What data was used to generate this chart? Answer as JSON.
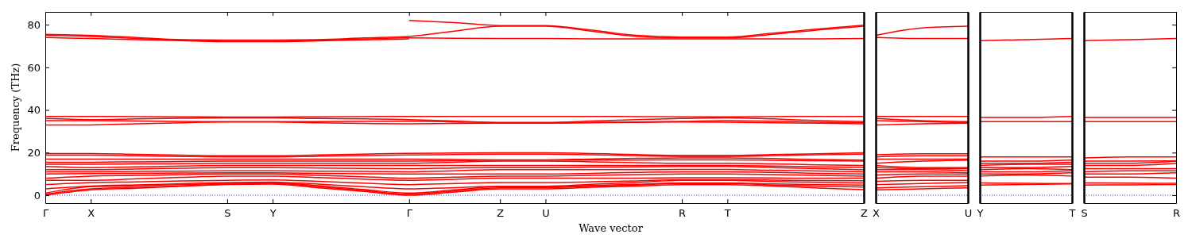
{
  "chart_data": [
    {
      "type": "line",
      "ylabel": "Frequency (THz)",
      "xlabel": "Wave vector",
      "categories": [
        "Γ",
        "X",
        null,
        null,
        "S",
        "Y",
        null,
        null,
        "Γ",
        null,
        "Z",
        "U",
        null,
        null,
        "R",
        "T",
        null,
        null,
        "Z"
      ],
      "ylim": [
        -3.7,
        86
      ],
      "yticks": [
        0,
        20,
        40,
        60,
        80
      ],
      "ref_lines": [
        {
          "axis": "y",
          "value": 0,
          "color": "#0000ff",
          "line_style": "dotted"
        }
      ],
      "series": [
        {
          "color": "#ff0000",
          "values": [
            75.5,
            75,
            74,
            73,
            72.8,
            72.8,
            73,
            73.8,
            74.5,
            77,
            79.3,
            79.3,
            77,
            74.5,
            73.8,
            73.8,
            75.5,
            77.5,
            79.3
          ]
        },
        {
          "color": "#ff0000",
          "values": [
            75,
            74.5,
            73.5,
            72.8,
            72.2,
            72.2,
            72.8,
            73.3,
            73.8,
            73.6,
            73.5,
            73.5,
            73.3,
            73.3,
            73.3,
            73.3,
            73.3,
            73.3,
            73.5
          ]
        },
        {
          "color": "#ff0000",
          "values": [
            74,
            73.5,
            73,
            72.5,
            72,
            72,
            72.4,
            72.9,
            73.3,
            null,
            null,
            null,
            null,
            null,
            null,
            null,
            null,
            null,
            null
          ]
        },
        {
          "color": "#ff0000",
          "values": [
            null,
            null,
            null,
            null,
            null,
            null,
            null,
            null,
            82,
            81,
            79.6,
            79.6,
            77.5,
            75,
            74.2,
            74.2,
            76,
            78,
            79.8
          ]
        },
        {
          "color": "#ff0000",
          "values": [
            37,
            37,
            36.9,
            36.8,
            36.7,
            36.7,
            36.8,
            36.9,
            37,
            37,
            37,
            37,
            37,
            36.9,
            36.8,
            36.8,
            36.9,
            37,
            37
          ]
        },
        {
          "color": "#ff0000",
          "values": [
            36,
            35.5,
            35.8,
            36.1,
            36.3,
            36.3,
            36,
            35.8,
            35.5,
            34.8,
            34.2,
            34.2,
            34.8,
            35.5,
            36,
            36.3,
            35.8,
            35,
            34.5
          ]
        },
        {
          "color": "#ff0000",
          "values": [
            35,
            35,
            34.8,
            34.6,
            34.5,
            34.5,
            34.5,
            34.6,
            34.7,
            34.4,
            34,
            34,
            34.2,
            34.4,
            34.6,
            35,
            34.7,
            34.3,
            34
          ]
        },
        {
          "color": "#ff0000",
          "values": [
            33,
            33,
            33.5,
            34,
            34.4,
            34.4,
            34,
            33.7,
            33.5,
            33.7,
            33.8,
            33.8,
            34,
            34.2,
            34.4,
            34.3,
            34,
            33.8,
            33.5
          ]
        },
        {
          "color": "#ff0000",
          "values": [
            0,
            2.5,
            3.3,
            4.2,
            5,
            5.2,
            3.5,
            1.8,
            0,
            1.5,
            3,
            3,
            3.7,
            4.3,
            5,
            5,
            4.3,
            3.4,
            2.6
          ]
        },
        {
          "color": "#ff0000",
          "values": [
            0.5,
            3,
            3.7,
            4.4,
            5.2,
            5.6,
            4,
            2.3,
            0.5,
            2,
            3.5,
            3.5,
            4.2,
            4.8,
            5.5,
            5.5,
            4.8,
            4.3,
            3.8
          ]
        },
        {
          "color": "#ff0000",
          "values": [
            1,
            4,
            4.5,
            5,
            5.5,
            5.8,
            4.5,
            2.7,
            1,
            2.5,
            4,
            4,
            4.6,
            5.1,
            5.8,
            5.8,
            5.3,
            5,
            4.8
          ]
        },
        {
          "color": "#ff0000",
          "values": [
            3,
            4.3,
            4.9,
            5.4,
            6,
            6.2,
            5.2,
            4,
            3,
            3.6,
            4.2,
            4.2,
            5.1,
            6,
            7,
            7,
            6.4,
            6.1,
            5.8
          ]
        },
        {
          "color": "#ff0000",
          "values": [
            5,
            6,
            6.3,
            6.7,
            7,
            7.2,
            6.5,
            5.7,
            5,
            5.5,
            6,
            6,
            6.3,
            6.7,
            7.3,
            7.3,
            7.1,
            6.9,
            6.8
          ]
        },
        {
          "color": "#ff0000",
          "values": [
            7,
            7,
            7.7,
            8.4,
            9,
            9,
            8.3,
            7.6,
            7,
            7.5,
            8,
            8,
            8,
            8,
            8.2,
            8.2,
            8.1,
            8,
            8
          ]
        },
        {
          "color": "#ff0000",
          "values": [
            8,
            9,
            9.3,
            9.7,
            10,
            10,
            9.3,
            8.7,
            8,
            8.5,
            9,
            9,
            9.3,
            9.7,
            10,
            10,
            9.7,
            9.3,
            9
          ]
        },
        {
          "color": "#ff0000",
          "values": [
            10,
            10.2,
            10.3,
            10.4,
            10.5,
            10.5,
            10.3,
            10.1,
            10,
            10,
            10,
            10,
            10.3,
            10.7,
            11,
            11,
            10.7,
            10.3,
            10
          ]
        },
        {
          "color": "#ff0000",
          "values": [
            11,
            11,
            11.2,
            11.3,
            11.5,
            11.5,
            11.3,
            11.2,
            11,
            11.5,
            12,
            12,
            12,
            12,
            12.1,
            12.1,
            11.7,
            11.4,
            11
          ]
        },
        {
          "color": "#ff0000",
          "values": [
            12,
            12,
            12.3,
            12.7,
            13,
            13,
            12.8,
            12.6,
            12.5,
            12.8,
            13,
            13,
            13.2,
            13.3,
            13.5,
            13.5,
            13,
            12.5,
            12
          ]
        },
        {
          "color": "#ff0000",
          "values": [
            13.5,
            13,
            13.3,
            13.7,
            14,
            14,
            14,
            14,
            14,
            14,
            14,
            14,
            14,
            14,
            14,
            14,
            13.7,
            13.3,
            13
          ]
        },
        {
          "color": "#ff0000",
          "values": [
            14.5,
            14.5,
            14.7,
            14.8,
            15,
            15,
            15,
            15,
            15,
            15.5,
            16,
            16,
            15.7,
            15.3,
            15,
            15,
            14.7,
            14.3,
            14
          ]
        },
        {
          "color": "#ff0000",
          "values": [
            15.5,
            15.5,
            15.7,
            15.8,
            16,
            16,
            16,
            16,
            16,
            16.2,
            16.5,
            16.5,
            16.5,
            16.5,
            16.6,
            16.6,
            16.4,
            16.2,
            16
          ]
        },
        {
          "color": "#ff0000",
          "values": [
            17,
            17,
            17,
            17,
            17,
            17,
            17,
            17,
            17,
            16.8,
            16.6,
            16.6,
            17,
            17.3,
            17.5,
            17.5,
            17.2,
            16.8,
            16.5
          ]
        },
        {
          "color": "#ff0000",
          "values": [
            18.8,
            18.8,
            18.5,
            18.2,
            18,
            18,
            18.3,
            18.6,
            18.9,
            19.1,
            19.3,
            19.3,
            19,
            18.6,
            18.2,
            18.2,
            18.6,
            19,
            19.3
          ]
        },
        {
          "color": "#ff0000",
          "values": [
            19.6,
            19.6,
            19.2,
            18.8,
            18.5,
            18.5,
            18.9,
            19.3,
            19.7,
            19.8,
            19.9,
            19.9,
            19.6,
            19.1,
            18.7,
            18.7,
            19.1,
            19.5,
            19.9
          ]
        }
      ]
    },
    {
      "type": "line",
      "categories": [
        "X",
        null,
        "U"
      ],
      "ylim": [
        -3.7,
        86
      ],
      "yticks": [
        0,
        20,
        40,
        60,
        80
      ],
      "tick_labels": "x",
      "ref_lines": [
        {
          "axis": "y",
          "value": 0,
          "color": "#0000ff",
          "line_style": "dotted"
        }
      ],
      "series": [
        {
          "color": "#ff0000",
          "values": [
            75,
            78.5,
            79.3
          ]
        },
        {
          "color": "#ff0000",
          "values": [
            74,
            73.5,
            73.5
          ]
        },
        {
          "color": "#ff0000",
          "values": [
            37,
            37,
            37
          ]
        },
        {
          "color": "#ff0000",
          "values": [
            36,
            35,
            34.5
          ]
        },
        {
          "color": "#ff0000",
          "values": [
            35,
            34.5,
            34
          ]
        },
        {
          "color": "#ff0000",
          "values": [
            33,
            33.5,
            33.8
          ]
        },
        {
          "color": "#ff0000",
          "values": [
            2.5,
            3,
            3.5
          ]
        },
        {
          "color": "#ff0000",
          "values": [
            3.5,
            4,
            4.5
          ]
        },
        {
          "color": "#ff0000",
          "values": [
            5,
            5.5,
            6
          ]
        },
        {
          "color": "#ff0000",
          "values": [
            6.5,
            7,
            7
          ]
        },
        {
          "color": "#ff0000",
          "values": [
            8,
            9,
            9
          ]
        },
        {
          "color": "#ff0000",
          "values": [
            9.5,
            10,
            10
          ]
        },
        {
          "color": "#ff0000",
          "values": [
            11,
            11,
            10.5
          ]
        },
        {
          "color": "#ff0000",
          "values": [
            12,
            12,
            11.5
          ]
        },
        {
          "color": "#ff0000",
          "values": [
            13,
            12.5,
            12.5
          ]
        },
        {
          "color": "#ff0000",
          "values": [
            14,
            13,
            13
          ]
        },
        {
          "color": "#ff0000",
          "values": [
            15,
            16,
            16.5
          ]
        },
        {
          "color": "#ff0000",
          "values": [
            17,
            17,
            17
          ]
        },
        {
          "color": "#ff0000",
          "values": [
            18,
            18.5,
            18.5
          ]
        },
        {
          "color": "#ff0000",
          "values": [
            19,
            19.5,
            19.5
          ]
        }
      ]
    },
    {
      "type": "line",
      "categories": [
        "Y",
        null,
        "T"
      ],
      "ylim": [
        -3.7,
        86
      ],
      "yticks": [
        0,
        20,
        40,
        60,
        80
      ],
      "tick_labels": "x",
      "ref_lines": [
        {
          "axis": "y",
          "value": 0,
          "color": "#0000ff",
          "line_style": "dotted"
        }
      ],
      "series": [
        {
          "color": "#ff0000",
          "values": [
            72.5,
            73,
            73.5
          ]
        },
        {
          "color": "#ff0000",
          "values": [
            36.5,
            36.5,
            37
          ]
        },
        {
          "color": "#ff0000",
          "values": [
            34.5,
            34.5,
            34.5
          ]
        },
        {
          "color": "#ff0000",
          "values": [
            4.8,
            5,
            5.3
          ]
        },
        {
          "color": "#ff0000",
          "values": [
            5.8,
            5.6,
            5.5
          ]
        },
        {
          "color": "#ff0000",
          "values": [
            9,
            9.5,
            9
          ]
        },
        {
          "color": "#ff0000",
          "values": [
            10,
            10,
            10.5
          ]
        },
        {
          "color": "#ff0000",
          "values": [
            11,
            11,
            11.5
          ]
        },
        {
          "color": "#ff0000",
          "values": [
            12,
            12.5,
            12
          ]
        },
        {
          "color": "#ff0000",
          "values": [
            13,
            13,
            13.5
          ]
        },
        {
          "color": "#ff0000",
          "values": [
            14,
            14.5,
            14.5
          ]
        },
        {
          "color": "#ff0000",
          "values": [
            15,
            15,
            15.5
          ]
        },
        {
          "color": "#ff0000",
          "values": [
            16,
            16,
            16.5
          ]
        },
        {
          "color": "#ff0000",
          "values": [
            18,
            18,
            18
          ]
        }
      ]
    },
    {
      "type": "line",
      "categories": [
        "S",
        null,
        "R"
      ],
      "ylim": [
        -3.7,
        86
      ],
      "yticks": [
        0,
        20,
        40,
        60,
        80
      ],
      "tick_labels": "x",
      "ref_lines": [
        {
          "axis": "y",
          "value": 0,
          "color": "#0000ff",
          "line_style": "dotted"
        }
      ],
      "series": [
        {
          "color": "#ff0000",
          "values": [
            72.5,
            73,
            73.5
          ]
        },
        {
          "color": "#ff0000",
          "values": [
            36.5,
            36.5,
            36.5
          ]
        },
        {
          "color": "#ff0000",
          "values": [
            34.5,
            34.5,
            34.5
          ]
        },
        {
          "color": "#ff0000",
          "values": [
            4.8,
            4.9,
            5
          ]
        },
        {
          "color": "#ff0000",
          "values": [
            5.8,
            5.7,
            5.6
          ]
        },
        {
          "color": "#ff0000",
          "values": [
            8.5,
            8.5,
            8
          ]
        },
        {
          "color": "#ff0000",
          "values": [
            10,
            10,
            10.5
          ]
        },
        {
          "color": "#ff0000",
          "values": [
            11,
            11.5,
            11.5
          ]
        },
        {
          "color": "#ff0000",
          "values": [
            12.5,
            12.5,
            12.5
          ]
        },
        {
          "color": "#ff0000",
          "values": [
            14,
            14,
            15
          ]
        },
        {
          "color": "#ff0000",
          "values": [
            15,
            15,
            16
          ]
        },
        {
          "color": "#ff0000",
          "values": [
            16,
            16,
            16.2
          ]
        },
        {
          "color": "#ff0000",
          "values": [
            17.5,
            18,
            18
          ]
        }
      ]
    }
  ]
}
